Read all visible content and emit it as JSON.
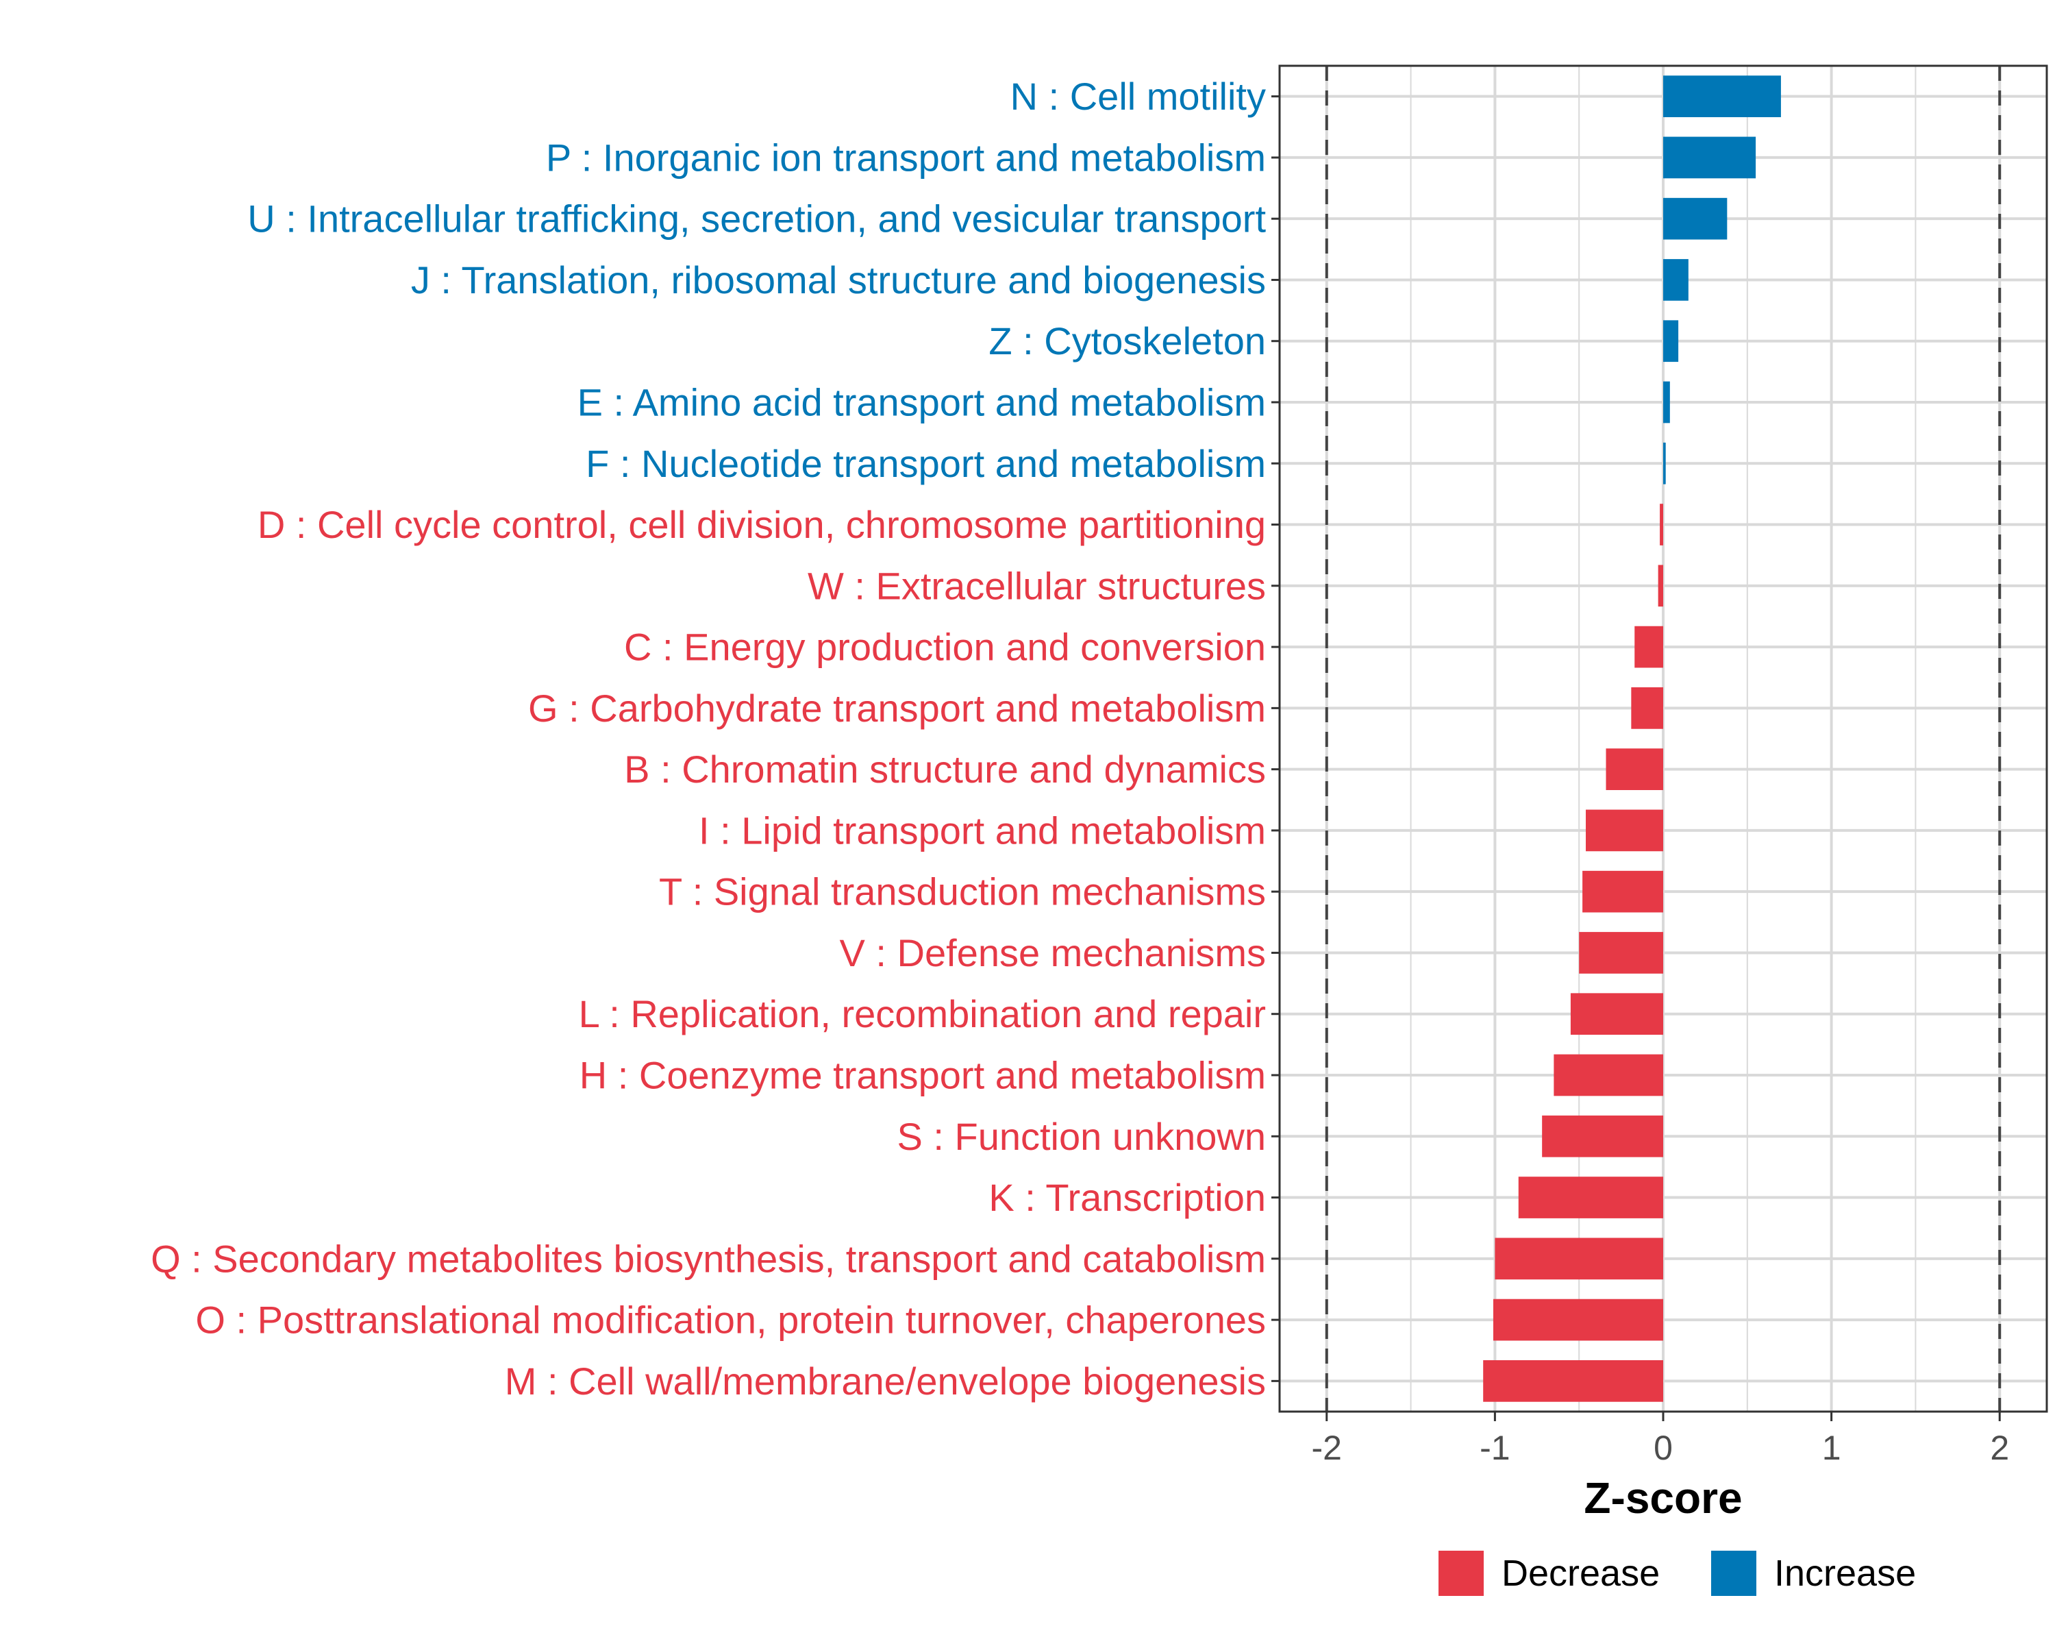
{
  "chart_data": {
    "type": "bar",
    "orientation": "horizontal",
    "xlabel": "Z-score",
    "ylabel": "",
    "xlim": [
      -2.28,
      2.28
    ],
    "xticks": [
      {
        "value": -2,
        "label": "-2"
      },
      {
        "value": -1,
        "label": "-1"
      },
      {
        "value": 0,
        "label": "0"
      },
      {
        "value": 1,
        "label": "1"
      },
      {
        "value": 2,
        "label": "2"
      }
    ],
    "reference_lines": [
      -2,
      2
    ],
    "grid": true,
    "legend_position": "bottom",
    "legend": [
      {
        "key": "decrease",
        "label": "Decrease",
        "color": "#E63946"
      },
      {
        "key": "increase",
        "label": "Increase",
        "color": "#0077B6"
      }
    ],
    "categories": [
      {
        "label": "N : Cell motility",
        "value": 0.7,
        "group": "increase"
      },
      {
        "label": "P : Inorganic ion transport and metabolism",
        "value": 0.55,
        "group": "increase"
      },
      {
        "label": "U : Intracellular trafficking, secretion, and vesicular transport",
        "value": 0.38,
        "group": "increase"
      },
      {
        "label": "J : Translation, ribosomal structure and biogenesis",
        "value": 0.15,
        "group": "increase"
      },
      {
        "label": "Z : Cytoskeleton",
        "value": 0.09,
        "group": "increase"
      },
      {
        "label": "E : Amino acid transport and metabolism",
        "value": 0.04,
        "group": "increase"
      },
      {
        "label": "F : Nucleotide transport and metabolism",
        "value": 0.015,
        "group": "increase"
      },
      {
        "label": "D : Cell cycle control, cell division, chromosome partitioning",
        "value": -0.02,
        "group": "decrease"
      },
      {
        "label": "W : Extracellular structures",
        "value": -0.03,
        "group": "decrease"
      },
      {
        "label": "C : Energy production and conversion",
        "value": -0.17,
        "group": "decrease"
      },
      {
        "label": "G : Carbohydrate transport and metabolism",
        "value": -0.19,
        "group": "decrease"
      },
      {
        "label": "B : Chromatin structure and dynamics",
        "value": -0.34,
        "group": "decrease"
      },
      {
        "label": "I : Lipid transport and metabolism",
        "value": -0.46,
        "group": "decrease"
      },
      {
        "label": "T : Signal transduction mechanisms",
        "value": -0.48,
        "group": "decrease"
      },
      {
        "label": "V : Defense mechanisms",
        "value": -0.5,
        "group": "decrease"
      },
      {
        "label": "L : Replication, recombination and repair",
        "value": -0.55,
        "group": "decrease"
      },
      {
        "label": "H : Coenzyme transport and metabolism",
        "value": -0.65,
        "group": "decrease"
      },
      {
        "label": "S : Function unknown",
        "value": -0.72,
        "group": "decrease"
      },
      {
        "label": "K : Transcription",
        "value": -0.86,
        "group": "decrease"
      },
      {
        "label": "Q : Secondary metabolites biosynthesis, transport and catabolism",
        "value": -1.0,
        "group": "decrease"
      },
      {
        "label": "O : Posttranslational modification, protein turnover, chaperones",
        "value": -1.01,
        "group": "decrease"
      },
      {
        "label": "M : Cell wall/membrane/envelope biogenesis",
        "value": -1.07,
        "group": "decrease"
      }
    ]
  }
}
